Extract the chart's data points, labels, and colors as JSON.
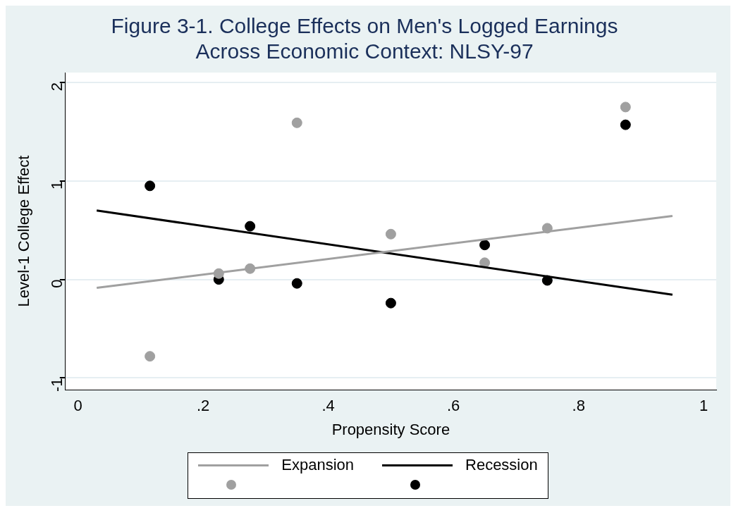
{
  "chart_data": {
    "type": "scatter",
    "title": [
      "Figure 3-1. College Effects on Men's Logged Earnings",
      "Across Economic Context: NLSY-97"
    ],
    "xlabel": "Propensity Score",
    "ylabel": "Level-1 College Effect",
    "xlim": [
      -0.02,
      1.02
    ],
    "xticks": [
      0,
      {
        "value": 0.2,
        "label": ".2"
      },
      {
        "value": 0.4,
        "label": ".4"
      },
      {
        "value": 0.6,
        "label": ".6"
      },
      {
        "value": 0.8,
        "label": ".8"
      },
      1
    ],
    "ylim": [
      -1.12,
      2.1
    ],
    "yticks": [
      -1,
      0,
      1,
      2
    ],
    "grid": "y",
    "legend": "bottom",
    "series": [
      {
        "name": "Expansion",
        "type": "line",
        "color": "#a0a0a0",
        "marker": "none",
        "x": [
          0.03,
          0.95
        ],
        "values": [
          -0.085,
          0.645
        ]
      },
      {
        "name": "Recession",
        "type": "line",
        "color": "#000000",
        "marker": "none",
        "x": [
          0.03,
          0.95
        ],
        "values": [
          0.7,
          -0.155
        ]
      },
      {
        "color": "#a0a0a0",
        "marker": "circle",
        "x": [
          0.115,
          0.225,
          0.275,
          0.35,
          0.5,
          0.65,
          0.75,
          0.875
        ],
        "values": [
          -0.78,
          0.06,
          0.11,
          1.59,
          0.46,
          0.17,
          0.52,
          1.75
        ]
      },
      {
        "color": "#000000",
        "marker": "circle",
        "x": [
          0.115,
          0.225,
          0.275,
          0.35,
          0.5,
          0.65,
          0.75,
          0.875
        ],
        "values": [
          0.95,
          0.0,
          0.54,
          -0.04,
          -0.24,
          0.35,
          -0.01,
          1.57
        ]
      }
    ]
  }
}
